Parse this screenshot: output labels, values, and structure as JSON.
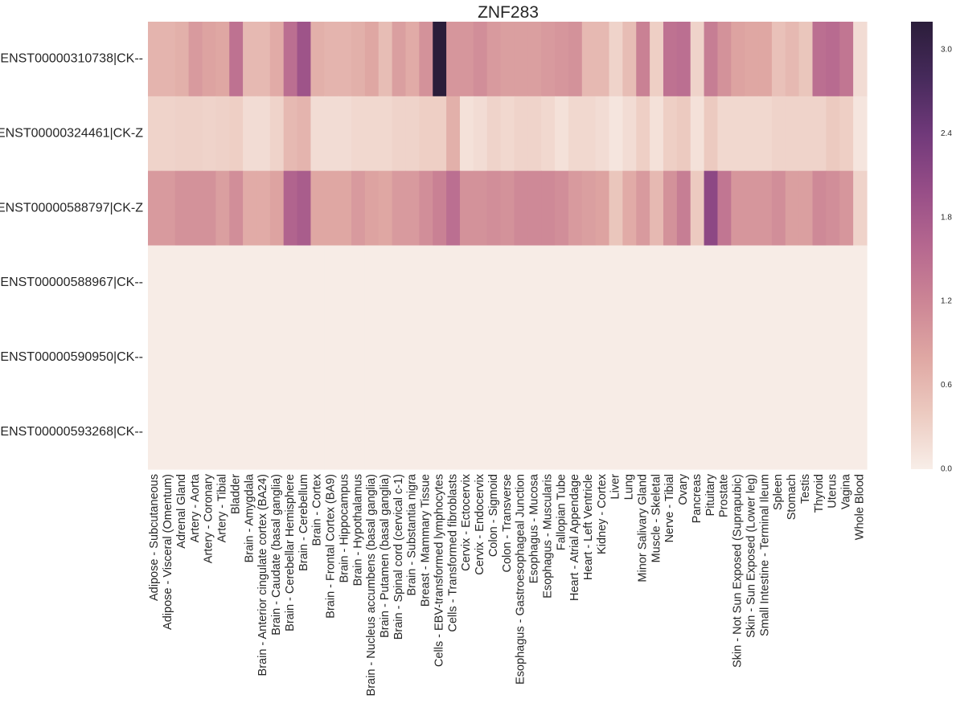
{
  "chart_data": {
    "type": "heatmap",
    "title": "ZNF283",
    "xlabel": "",
    "ylabel": "",
    "rows": [
      "ENST00000310738|CK--",
      "ENST00000324461|CK-Z",
      "ENST00000588797|CK-Z",
      "ENST00000588967|CK--",
      "ENST00000590950|CK--",
      "ENST00000593268|CK--"
    ],
    "columns": [
      "Adipose - Subcutaneous",
      "Adipose - Visceral (Omentum)",
      "Adrenal Gland",
      "Artery - Aorta",
      "Artery - Coronary",
      "Artery - Tibial",
      "Bladder",
      "Brain - Amygdala",
      "Brain - Anterior cingulate cortex (BA24)",
      "Brain - Caudate (basal ganglia)",
      "Brain - Cerebellar Hemisphere",
      "Brain - Cerebellum",
      "Brain - Cortex",
      "Brain - Frontal Cortex (BA9)",
      "Brain - Hippocampus",
      "Brain - Hypothalamus",
      "Brain - Nucleus accumbens (basal ganglia)",
      "Brain - Putamen (basal ganglia)",
      "Brain - Spinal cord (cervical c-1)",
      "Brain - Substantia nigra",
      "Breast - Mammary Tissue",
      "Cells - EBV-transformed lymphocytes",
      "Cells - Transformed fibroblasts",
      "Cervix - Ectocervix",
      "Cervix - Endocervix",
      "Colon - Sigmoid",
      "Colon - Transverse",
      "Esophagus - Gastroesophageal Junction",
      "Esophagus - Mucosa",
      "Esophagus - Muscularis",
      "Fallopian Tube",
      "Heart - Atrial Appendage",
      "Heart - Left Ventricle",
      "Kidney - Cortex",
      "Liver",
      "Lung",
      "Minor Salivary Gland",
      "Muscle - Skeletal",
      "Nerve - Tibial",
      "Ovary",
      "Pancreas",
      "Pituitary",
      "Prostate",
      "Skin - Not Sun Exposed (Suprapubic)",
      "Skin - Sun Exposed (Lower leg)",
      "Small Intestine - Terminal Ileum",
      "Spleen",
      "Stomach",
      "Testis",
      "Thyroid",
      "Uterus",
      "Vagina",
      "Whole Blood"
    ],
    "values": [
      [
        0.65,
        0.65,
        0.7,
        0.95,
        0.85,
        0.8,
        1.45,
        0.6,
        0.6,
        0.75,
        1.5,
        1.9,
        0.7,
        0.65,
        0.65,
        0.7,
        0.8,
        0.55,
        0.9,
        0.75,
        1.05,
        3.2,
        1.0,
        1.0,
        1.1,
        0.95,
        0.9,
        0.9,
        0.9,
        0.95,
        1.0,
        1.05,
        0.6,
        0.6,
        0.3,
        0.55,
        1.25,
        0.35,
        1.45,
        1.5,
        0.3,
        1.3,
        1.05,
        0.85,
        0.8,
        0.8,
        0.5,
        0.6,
        0.45,
        1.5,
        1.55,
        1.4,
        0.2
      ],
      [
        0.3,
        0.3,
        0.32,
        0.32,
        0.3,
        0.32,
        0.35,
        0.2,
        0.2,
        0.3,
        0.6,
        0.65,
        0.2,
        0.2,
        0.2,
        0.25,
        0.25,
        0.25,
        0.3,
        0.3,
        0.35,
        0.35,
        0.7,
        0.15,
        0.2,
        0.3,
        0.25,
        0.3,
        0.3,
        0.25,
        0.15,
        0.25,
        0.25,
        0.2,
        0.1,
        0.2,
        0.35,
        0.15,
        0.35,
        0.4,
        0.15,
        0.4,
        0.25,
        0.25,
        0.25,
        0.25,
        0.3,
        0.3,
        0.3,
        0.3,
        0.4,
        0.35,
        0.1
      ],
      [
        0.95,
        0.95,
        1.05,
        1.05,
        1.05,
        0.9,
        1.1,
        0.75,
        0.75,
        0.85,
        1.65,
        1.75,
        0.8,
        0.8,
        0.8,
        0.95,
        0.85,
        0.8,
        0.95,
        0.95,
        1.1,
        1.25,
        1.5,
        1.05,
        1.05,
        1.1,
        1.05,
        1.15,
        1.15,
        1.15,
        1.1,
        0.95,
        0.9,
        0.85,
        0.45,
        0.75,
        0.95,
        0.6,
        1.05,
        1.3,
        0.4,
        2.1,
        1.4,
        1.0,
        1.0,
        1.0,
        1.1,
        0.9,
        0.9,
        1.15,
        1.1,
        1.0,
        0.3
      ],
      [
        0.02,
        0.02,
        0.02,
        0.02,
        0.02,
        0.02,
        0.02,
        0.02,
        0.02,
        0.02,
        0.02,
        0.02,
        0.02,
        0.02,
        0.02,
        0.02,
        0.02,
        0.02,
        0.02,
        0.02,
        0.02,
        0.02,
        0.02,
        0.02,
        0.02,
        0.02,
        0.02,
        0.02,
        0.02,
        0.02,
        0.02,
        0.02,
        0.02,
        0.02,
        0.02,
        0.02,
        0.02,
        0.02,
        0.02,
        0.02,
        0.02,
        0.02,
        0.02,
        0.02,
        0.02,
        0.02,
        0.02,
        0.02,
        0.02,
        0.02,
        0.02,
        0.02,
        0.02
      ],
      [
        0.02,
        0.02,
        0.02,
        0.02,
        0.02,
        0.02,
        0.02,
        0.02,
        0.02,
        0.02,
        0.02,
        0.02,
        0.02,
        0.02,
        0.02,
        0.02,
        0.02,
        0.02,
        0.02,
        0.02,
        0.02,
        0.02,
        0.02,
        0.02,
        0.02,
        0.02,
        0.02,
        0.02,
        0.02,
        0.02,
        0.02,
        0.02,
        0.02,
        0.02,
        0.02,
        0.02,
        0.02,
        0.02,
        0.02,
        0.02,
        0.02,
        0.02,
        0.02,
        0.02,
        0.02,
        0.02,
        0.02,
        0.02,
        0.02,
        0.02,
        0.02,
        0.02,
        0.02
      ],
      [
        0.02,
        0.02,
        0.02,
        0.02,
        0.02,
        0.02,
        0.02,
        0.02,
        0.02,
        0.02,
        0.02,
        0.02,
        0.02,
        0.02,
        0.02,
        0.02,
        0.02,
        0.02,
        0.02,
        0.02,
        0.02,
        0.02,
        0.02,
        0.02,
        0.02,
        0.02,
        0.02,
        0.02,
        0.02,
        0.02,
        0.02,
        0.02,
        0.02,
        0.02,
        0.02,
        0.02,
        0.02,
        0.02,
        0.02,
        0.02,
        0.02,
        0.02,
        0.02,
        0.02,
        0.02,
        0.02,
        0.02,
        0.02,
        0.02,
        0.02,
        0.02,
        0.02,
        0.02
      ]
    ],
    "colorbar": {
      "range": [
        0.0,
        3.2
      ],
      "ticks": [
        "0.0",
        "0.6",
        "1.2",
        "1.8",
        "2.4",
        "3.0"
      ],
      "tick_values": [
        0.0,
        0.6,
        1.2,
        1.8,
        2.4,
        3.0
      ],
      "colormap": [
        "#f8eee8",
        "#eccac0",
        "#dfa7a3",
        "#cc8595",
        "#b5678f",
        "#964d87",
        "#70397a",
        "#462a5b",
        "#2b1d3a"
      ]
    },
    "grid": false,
    "legend": "colorbar-right"
  }
}
